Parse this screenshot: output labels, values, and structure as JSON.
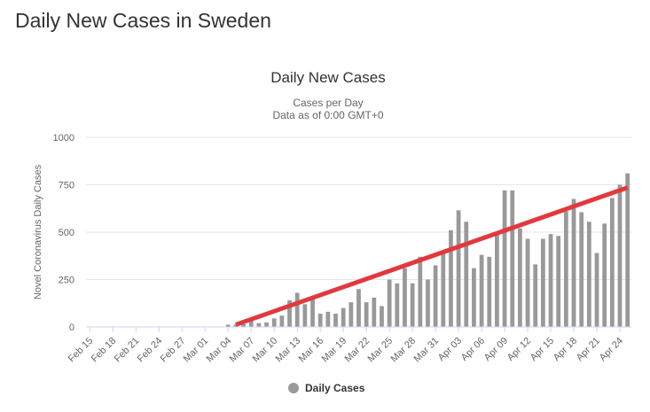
{
  "page": {
    "title": "Daily New Cases in Sweden"
  },
  "chart_data": {
    "type": "bar",
    "title": "Daily New Cases",
    "subtitle_lines": [
      "Cases per Day",
      "Data as of 0:00 GMT+0"
    ],
    "xlabel": "",
    "ylabel": "Novel Coronavirus Daily Cases",
    "ylim": [
      0,
      1000
    ],
    "yticks": [
      0,
      250,
      500,
      750,
      1000
    ],
    "grid": true,
    "legend_position": "bottom-center",
    "categories": [
      "Feb 15",
      "Feb 16",
      "Feb 17",
      "Feb 18",
      "Feb 19",
      "Feb 20",
      "Feb 21",
      "Feb 22",
      "Feb 23",
      "Feb 24",
      "Feb 25",
      "Feb 26",
      "Feb 27",
      "Feb 28",
      "Feb 29",
      "Mar 01",
      "Mar 02",
      "Mar 03",
      "Mar 04",
      "Mar 05",
      "Mar 06",
      "Mar 07",
      "Mar 08",
      "Mar 09",
      "Mar 10",
      "Mar 11",
      "Mar 12",
      "Mar 13",
      "Mar 14",
      "Mar 15",
      "Mar 16",
      "Mar 17",
      "Mar 18",
      "Mar 19",
      "Mar 20",
      "Mar 21",
      "Mar 22",
      "Mar 23",
      "Mar 24",
      "Mar 25",
      "Mar 26",
      "Mar 27",
      "Mar 28",
      "Mar 29",
      "Mar 30",
      "Mar 31",
      "Apr 01",
      "Apr 02",
      "Apr 03",
      "Apr 04",
      "Apr 05",
      "Apr 06",
      "Apr 07",
      "Apr 08",
      "Apr 09",
      "Apr 10",
      "Apr 11",
      "Apr 12",
      "Apr 13",
      "Apr 14",
      "Apr 15",
      "Apr 16",
      "Apr 17",
      "Apr 18",
      "Apr 19",
      "Apr 20",
      "Apr 21",
      "Apr 22",
      "Apr 23",
      "Apr 24",
      "Apr 25"
    ],
    "tick_labels": [
      "Feb 15",
      "Feb 18",
      "Feb 21",
      "Feb 24",
      "Feb 27",
      "Mar 01",
      "Mar 04",
      "Mar 07",
      "Mar 10",
      "Mar 13",
      "Mar 16",
      "Mar 19",
      "Mar 22",
      "Mar 25",
      "Mar 28",
      "Mar 31",
      "Apr 03",
      "Apr 06",
      "Apr 09",
      "Apr 12",
      "Apr 15",
      "Apr 18",
      "Apr 21",
      "Apr 24"
    ],
    "series": [
      {
        "name": "Daily Cases",
        "color": "#999999",
        "values": [
          0,
          0,
          0,
          0,
          0,
          0,
          0,
          0,
          0,
          0,
          0,
          1,
          1,
          1,
          0,
          0,
          0,
          0,
          12,
          12,
          15,
          35,
          20,
          24,
          45,
          60,
          140,
          180,
          120,
          150,
          70,
          80,
          70,
          100,
          130,
          200,
          130,
          155,
          110,
          250,
          230,
          310,
          230,
          370,
          250,
          325,
          400,
          510,
          615,
          555,
          310,
          380,
          370,
          490,
          720,
          720,
          520,
          465,
          330,
          465,
          490,
          480,
          610,
          675,
          605,
          555,
          390,
          545,
          680,
          750,
          810
        ]
      }
    ],
    "trend_line": {
      "color": "#e0393e",
      "start": [
        "Mar 05",
        12
      ],
      "end": [
        "Apr 25",
        735
      ]
    },
    "legend": [
      {
        "label": "Daily Cases",
        "color": "#999999"
      }
    ]
  }
}
